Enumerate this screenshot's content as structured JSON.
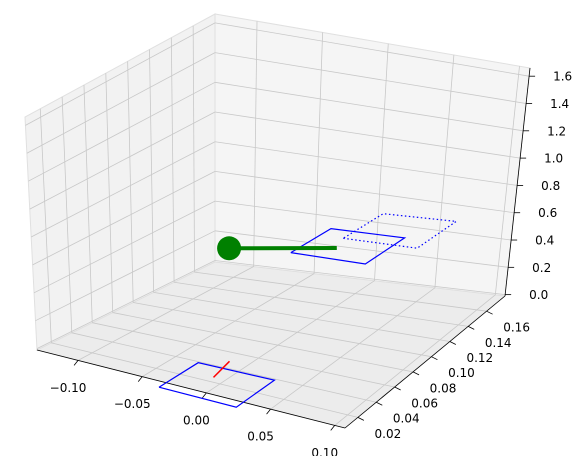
{
  "chart_data": {
    "type": "line3d",
    "xlim": [
      -0.132,
      0.108
    ],
    "ylim": [
      0.006,
      0.18
    ],
    "zlim": [
      -0.01,
      1.66
    ],
    "xticks": [
      {
        "value": -0.1,
        "label": "−0.10"
      },
      {
        "value": -0.05,
        "label": "−0.05"
      },
      {
        "value": 0,
        "label": "0.00"
      },
      0.05,
      {
        "value": 0.1,
        "label": "0.10"
      }
    ],
    "yticks": [
      0.02,
      0.04,
      0.06,
      0.08,
      {
        "value": 0.1,
        "label": "0.10"
      },
      0.12,
      0.14,
      0.16
    ],
    "zticks": [
      {
        "value": 0,
        "label": "0.0"
      },
      0.2,
      0.4,
      0.6,
      0.8,
      {
        "value": 1,
        "label": "1.0"
      },
      1.2,
      1.4,
      1.6
    ],
    "grid": true,
    "series": [
      {
        "x": [
          -0.03,
          0.03,
          0.03,
          -0.03,
          -0.03
        ],
        "y": [
          -0.003,
          -0.003,
          0.037,
          0.037,
          -0.003
        ],
        "z": [
          0,
          0,
          0,
          0,
          0
        ],
        "color": "#0000ff",
        "linestyle": "solid",
        "linewidth": 1.2
      },
      {
        "x": [
          -0.008,
          -0.013
        ],
        "y": [
          0.024,
          0.047
        ],
        "z": [
          0,
          0
        ],
        "color": "#ff0000",
        "linestyle": "solid",
        "linewidth": 1.5
      },
      {
        "x": [
          -0.021,
          0.039,
          0.039,
          -0.021,
          -0.021
        ],
        "y": [
          0.172,
          0.172,
          0.212,
          0.212,
          0.172
        ],
        "z": [
          0.3,
          0.3,
          0.3,
          0.3,
          0.3
        ],
        "color": "#0000ff",
        "linestyle": "dotted",
        "linewidth": 1.2
      },
      {
        "x": [
          -0.04,
          0.02,
          0.02,
          -0.04,
          -0.04
        ],
        "y": [
          0.143,
          0.143,
          0.183,
          0.183,
          0.143
        ],
        "z": [
          0.3,
          0.3,
          0.3,
          0.3,
          0.3
        ],
        "color": "#0000ff",
        "linestyle": "solid",
        "linewidth": 1.2
      },
      {
        "x": [
          -0.084,
          -0.015
        ],
        "y": [
          0.136,
          0.158
        ],
        "z": [
          0.3,
          0.3
        ],
        "color": "#008000",
        "linestyle": "solid",
        "linewidth": 4
      },
      {
        "x": [
          -0.084
        ],
        "y": [
          0.136
        ],
        "z": [
          0.3
        ],
        "color": "#008000",
        "marker": "circle",
        "markersize": 12
      }
    ]
  }
}
